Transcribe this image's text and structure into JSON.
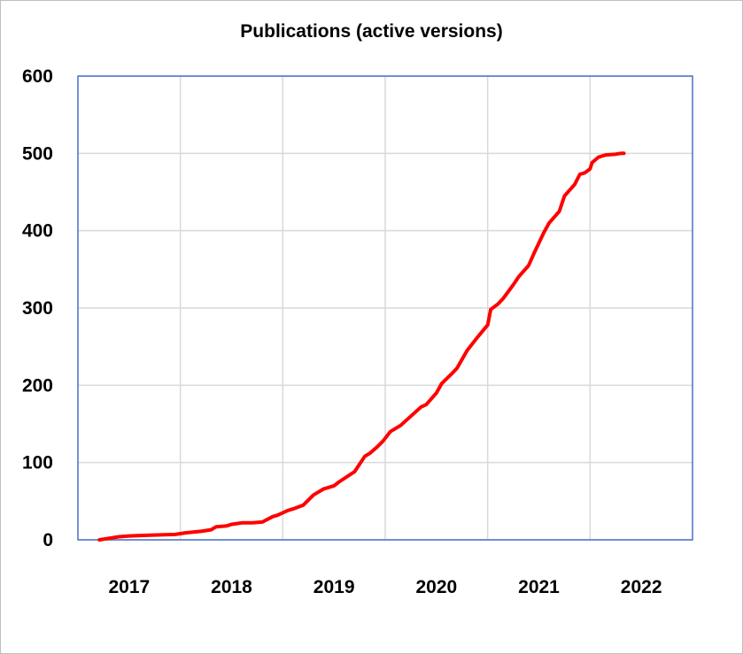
{
  "chart_data": {
    "type": "line",
    "title": "Publications (active versions)",
    "xlabel": "",
    "ylabel": "",
    "ylim": [
      0,
      600
    ],
    "yticks": [
      0,
      100,
      200,
      300,
      400,
      500,
      600
    ],
    "xticks": [
      "2017",
      "2018",
      "2019",
      "2020",
      "2021",
      "2022"
    ],
    "xlim": [
      2016.5,
      2022.5
    ],
    "grid": true,
    "legend": "none",
    "series": [
      {
        "color": "#ff0000",
        "x": [
          2016.71,
          2016.8,
          2016.9,
          2017.0,
          2017.2,
          2017.45,
          2017.55,
          2017.7,
          2017.8,
          2017.85,
          2017.95,
          2018.0,
          2018.1,
          2018.2,
          2018.3,
          2018.4,
          2018.45,
          2018.55,
          2018.6,
          2018.7,
          2018.8,
          2018.9,
          2019.0,
          2019.05,
          2019.2,
          2019.3,
          2019.35,
          2019.42,
          2019.48,
          2019.55,
          2019.65,
          2019.75,
          2019.85,
          2019.9,
          2020.0,
          2020.05,
          2020.15,
          2020.2,
          2020.3,
          2020.4,
          2020.5,
          2020.53,
          2020.6,
          2020.65,
          2020.75,
          2020.8,
          2020.9,
          2020.95,
          2021.05,
          2021.1,
          2021.2,
          2021.25,
          2021.35,
          2021.4,
          2021.45,
          2021.5,
          2021.52,
          2021.58,
          2021.65,
          2021.75,
          2021.8,
          2021.83
        ],
        "y": [
          0,
          2,
          4,
          5,
          6,
          7,
          9,
          11,
          13,
          17,
          18,
          20,
          22,
          22,
          23,
          30,
          32,
          38,
          40,
          45,
          58,
          66,
          70,
          75,
          88,
          108,
          112,
          120,
          128,
          140,
          148,
          160,
          172,
          175,
          190,
          202,
          215,
          222,
          245,
          262,
          278,
          298,
          305,
          312,
          330,
          340,
          355,
          370,
          398,
          410,
          425,
          445,
          460,
          473,
          475,
          480,
          488,
          495,
          498,
          499,
          500,
          500
        ]
      }
    ]
  }
}
